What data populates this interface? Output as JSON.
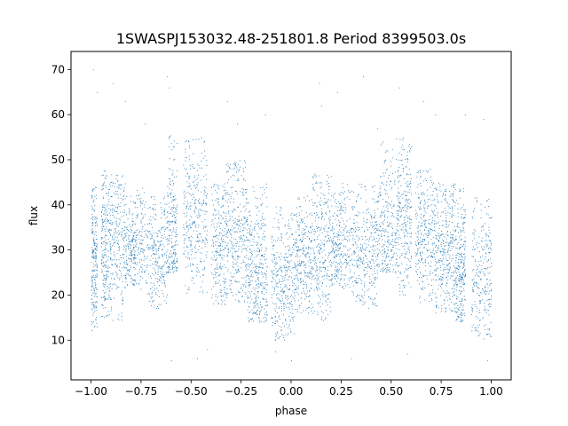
{
  "chart_data": {
    "type": "scatter",
    "title": "1SWASPJ153032.48-251801.8 Period 8399503.0s",
    "xlabel": "phase",
    "ylabel": "flux",
    "xlim": [
      -1.1,
      1.1
    ],
    "ylim": [
      1.2,
      74.0
    ],
    "x_ticks": [
      -1.0,
      -0.75,
      -0.5,
      -0.25,
      0.0,
      0.25,
      0.5,
      0.75,
      1.0
    ],
    "x_tick_labels": [
      "−1.00",
      "−0.75",
      "−0.50",
      "−0.25",
      "0.00",
      "0.25",
      "0.50",
      "0.75",
      "1.00"
    ],
    "y_ticks": [
      10,
      20,
      30,
      40,
      50,
      60,
      70
    ],
    "y_tick_labels": [
      "10",
      "20",
      "30",
      "40",
      "50",
      "60",
      "70"
    ],
    "grid": false,
    "marker_color": "#1f77b4",
    "series": [
      {
        "clusters": [
          {
            "x": [
              -1.0,
              -0.97
            ],
            "y_min": 12,
            "y_max": 44,
            "center": 28,
            "density": 1.0
          },
          {
            "x": [
              -0.95,
              -0.92
            ],
            "y_min": 15,
            "y_max": 48,
            "center": 30,
            "density": 0.8
          },
          {
            "x": [
              -0.92,
              -0.83
            ],
            "y_min": 14,
            "y_max": 47,
            "center": 32,
            "density": 1.4
          },
          {
            "x": [
              -0.83,
              -0.78
            ],
            "y_min": 22,
            "y_max": 42,
            "center": 30,
            "density": 0.8
          },
          {
            "x": [
              -0.78,
              -0.72
            ],
            "y_min": 20,
            "y_max": 45,
            "center": 32,
            "density": 0.6
          },
          {
            "x": [
              -0.72,
              -0.62
            ],
            "y_min": 17,
            "y_max": 42,
            "center": 30,
            "density": 1.2
          },
          {
            "x": [
              -0.62,
              -0.57
            ],
            "y_min": 25,
            "y_max": 56,
            "center": 34,
            "density": 1.0
          },
          {
            "x": [
              -0.54,
              -0.42
            ],
            "y_min": 20,
            "y_max": 55,
            "center": 37,
            "density": 1.5
          },
          {
            "x": [
              -0.4,
              -0.33
            ],
            "y_min": 18,
            "y_max": 45,
            "center": 30,
            "density": 1.0
          },
          {
            "x": [
              -0.33,
              -0.22
            ],
            "y_min": 18,
            "y_max": 50,
            "center": 34,
            "density": 1.6
          },
          {
            "x": [
              -0.22,
              -0.12
            ],
            "y_min": 14,
            "y_max": 45,
            "center": 26,
            "density": 1.6
          },
          {
            "x": [
              -0.1,
              0.02
            ],
            "y_min": 10,
            "y_max": 40,
            "center": 24,
            "density": 1.6
          },
          {
            "x": [
              0.02,
              0.1
            ],
            "y_min": 16,
            "y_max": 42,
            "center": 28,
            "density": 1.2
          },
          {
            "x": [
              0.1,
              0.2
            ],
            "y_min": 14,
            "y_max": 47,
            "center": 31,
            "density": 1.4
          },
          {
            "x": [
              0.2,
              0.25
            ],
            "y_min": 22,
            "y_max": 43,
            "center": 30,
            "density": 0.8
          },
          {
            "x": [
              0.25,
              0.32
            ],
            "y_min": 20,
            "y_max": 45,
            "center": 32,
            "density": 0.7
          },
          {
            "x": [
              0.32,
              0.43
            ],
            "y_min": 17,
            "y_max": 45,
            "center": 30,
            "density": 1.3
          },
          {
            "x": [
              0.43,
              0.53
            ],
            "y_min": 25,
            "y_max": 55,
            "center": 35,
            "density": 1.2
          },
          {
            "x": [
              0.53,
              0.6
            ],
            "y_min": 20,
            "y_max": 55,
            "center": 37,
            "density": 1.2
          },
          {
            "x": [
              0.62,
              0.72
            ],
            "y_min": 18,
            "y_max": 48,
            "center": 33,
            "density": 1.4
          },
          {
            "x": [
              0.72,
              0.82
            ],
            "y_min": 16,
            "y_max": 45,
            "center": 30,
            "density": 1.6
          },
          {
            "x": [
              0.82,
              0.87
            ],
            "y_min": 14,
            "y_max": 44,
            "center": 26,
            "density": 1.2
          },
          {
            "x": [
              0.9,
              1.0
            ],
            "y_min": 10,
            "y_max": 42,
            "center": 25,
            "density": 1.2
          }
        ],
        "outliers": [
          [
            -0.99,
            70.0
          ],
          [
            -0.97,
            65.0
          ],
          [
            -0.89,
            67.0
          ],
          [
            -0.83,
            63.0
          ],
          [
            -0.62,
            68.5
          ],
          [
            -0.61,
            66.0
          ],
          [
            -0.32,
            63.0
          ],
          [
            -0.13,
            60.0
          ],
          [
            0.14,
            67.0
          ],
          [
            0.23,
            65.0
          ],
          [
            0.36,
            68.5
          ],
          [
            0.54,
            66.0
          ],
          [
            0.66,
            63.0
          ],
          [
            0.87,
            60.0
          ],
          [
            -0.6,
            5.5
          ],
          [
            -0.47,
            6.0
          ],
          [
            -0.08,
            7.5
          ],
          [
            0.0,
            5.5
          ],
          [
            0.3,
            6.0
          ],
          [
            0.98,
            5.5
          ],
          [
            0.58,
            7.0
          ],
          [
            -0.42,
            8.0
          ],
          [
            0.15,
            62.0
          ],
          [
            -0.73,
            58.0
          ],
          [
            0.43,
            57.0
          ],
          [
            -0.27,
            58.0
          ],
          [
            0.72,
            60.0
          ],
          [
            0.96,
            59.0
          ]
        ]
      }
    ]
  }
}
